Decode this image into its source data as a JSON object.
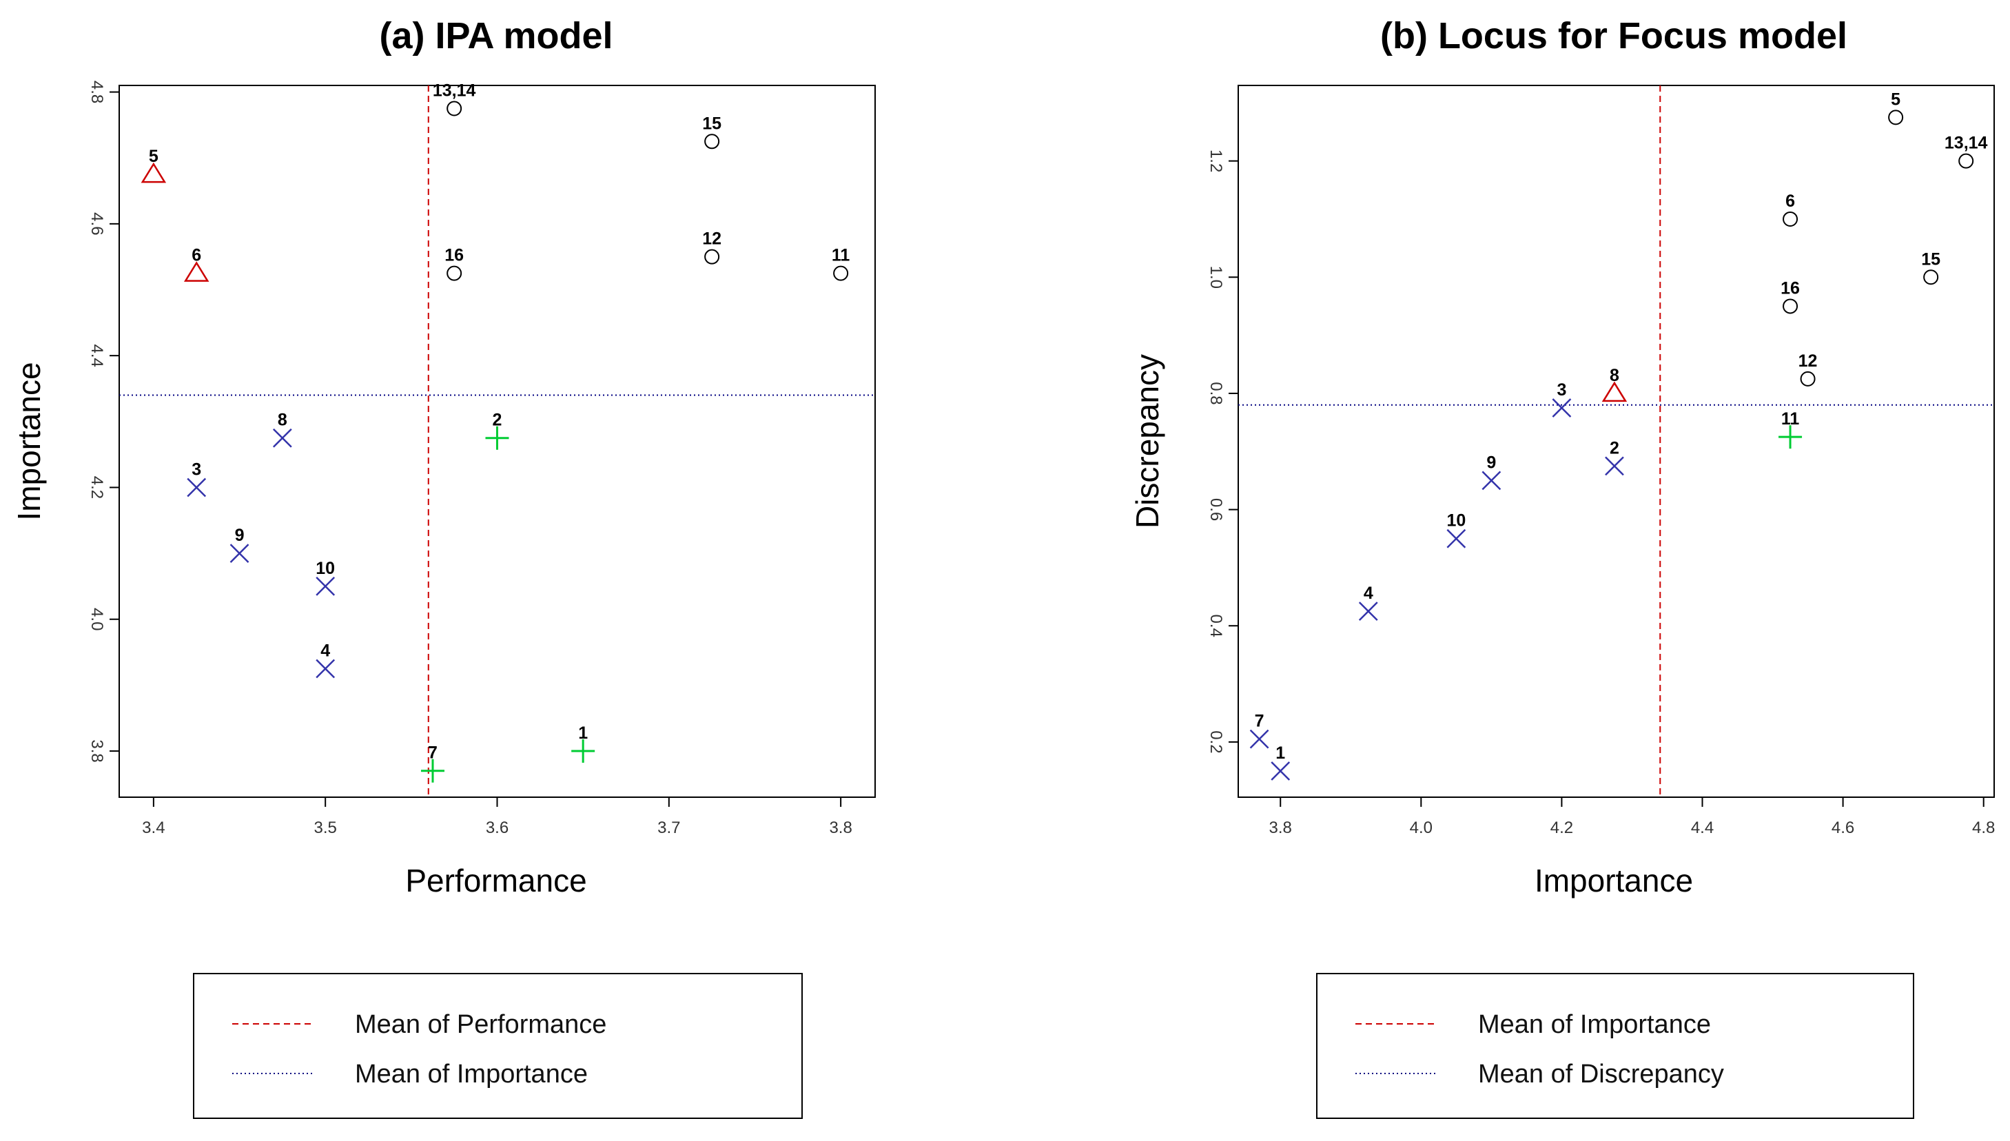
{
  "colors": {
    "high_marker": "#cc0000",
    "mid_marker": "#3333aa",
    "low_marker": "#00cc33",
    "open_marker": "#000000",
    "mean_x_line": "#cc0000",
    "mean_y_line": "#000080"
  },
  "chart_data": [
    {
      "type": "scatter",
      "title": "(a) IPA model",
      "xlabel": "Performance",
      "ylabel": "Importance",
      "xlim": [
        3.38,
        3.82
      ],
      "ylim": [
        3.73,
        4.81
      ],
      "xticks": [
        "3.4",
        "3.5",
        "3.6",
        "3.7",
        "3.8"
      ],
      "yticks": [
        "3.8",
        "4.0",
        "4.2",
        "4.4",
        "4.6",
        "4.8"
      ],
      "mean_x": 3.56,
      "mean_y": 4.34,
      "points": [
        {
          "label": "1",
          "x": 3.65,
          "y": 3.8,
          "marker": "plus"
        },
        {
          "label": "2",
          "x": 3.6,
          "y": 4.275,
          "marker": "plus"
        },
        {
          "label": "3",
          "x": 3.425,
          "y": 4.2,
          "marker": "x"
        },
        {
          "label": "4",
          "x": 3.5,
          "y": 3.925,
          "marker": "x"
        },
        {
          "label": "5",
          "x": 3.4,
          "y": 4.675,
          "marker": "triangle"
        },
        {
          "label": "6",
          "x": 3.425,
          "y": 4.525,
          "marker": "triangle"
        },
        {
          "label": "7",
          "x": 3.5625,
          "y": 3.77,
          "marker": "plus"
        },
        {
          "label": "8",
          "x": 3.475,
          "y": 4.275,
          "marker": "x"
        },
        {
          "label": "9",
          "x": 3.45,
          "y": 4.1,
          "marker": "x"
        },
        {
          "label": "10",
          "x": 3.5,
          "y": 4.05,
          "marker": "x"
        },
        {
          "label": "11",
          "x": 3.8,
          "y": 4.525,
          "marker": "circle"
        },
        {
          "label": "12",
          "x": 3.725,
          "y": 4.55,
          "marker": "circle"
        },
        {
          "label": "13,14",
          "x": 3.575,
          "y": 4.775,
          "marker": "circle"
        },
        {
          "label": "15",
          "x": 3.725,
          "y": 4.725,
          "marker": "circle"
        },
        {
          "label": "16",
          "x": 3.575,
          "y": 4.525,
          "marker": "circle"
        }
      ],
      "legend": [
        {
          "label": "Mean of Performance",
          "style": "dashed-red"
        },
        {
          "label": "Mean of Importance",
          "style": "dotted-blue"
        }
      ]
    },
    {
      "type": "scatter",
      "title": "(b) Locus for Focus model",
      "xlabel": "Importance",
      "ylabel": "Discrepancy",
      "xlim": [
        3.74,
        4.815
      ],
      "ylim": [
        0.105,
        1.33
      ],
      "xticks": [
        "3.8",
        "4.0",
        "4.2",
        "4.4",
        "4.6",
        "4.8"
      ],
      "yticks": [
        "0.2",
        "0.4",
        "0.6",
        "0.8",
        "1.0",
        "1.2"
      ],
      "mean_x": 4.34,
      "mean_y": 0.78,
      "points": [
        {
          "label": "1",
          "x": 3.8,
          "y": 0.15,
          "marker": "x"
        },
        {
          "label": "2",
          "x": 4.275,
          "y": 0.675,
          "marker": "x"
        },
        {
          "label": "3",
          "x": 4.2,
          "y": 0.775,
          "marker": "x"
        },
        {
          "label": "4",
          "x": 3.925,
          "y": 0.425,
          "marker": "x"
        },
        {
          "label": "5",
          "x": 4.675,
          "y": 1.275,
          "marker": "circle"
        },
        {
          "label": "6",
          "x": 4.525,
          "y": 1.1,
          "marker": "circle"
        },
        {
          "label": "7",
          "x": 3.77,
          "y": 0.205,
          "marker": "x"
        },
        {
          "label": "8",
          "x": 4.275,
          "y": 0.8,
          "marker": "triangle"
        },
        {
          "label": "9",
          "x": 4.1,
          "y": 0.65,
          "marker": "x"
        },
        {
          "label": "10",
          "x": 4.05,
          "y": 0.55,
          "marker": "x"
        },
        {
          "label": "11",
          "x": 4.525,
          "y": 0.725,
          "marker": "plus"
        },
        {
          "label": "12",
          "x": 4.55,
          "y": 0.825,
          "marker": "circle"
        },
        {
          "label": "13,14",
          "x": 4.775,
          "y": 1.2,
          "marker": "circle"
        },
        {
          "label": "15",
          "x": 4.725,
          "y": 1.0,
          "marker": "circle"
        },
        {
          "label": "16",
          "x": 4.525,
          "y": 0.95,
          "marker": "circle"
        }
      ],
      "legend": [
        {
          "label": "Mean of Importance",
          "style": "dashed-red"
        },
        {
          "label": "Mean of Discrepancy",
          "style": "dotted-blue"
        }
      ]
    }
  ]
}
